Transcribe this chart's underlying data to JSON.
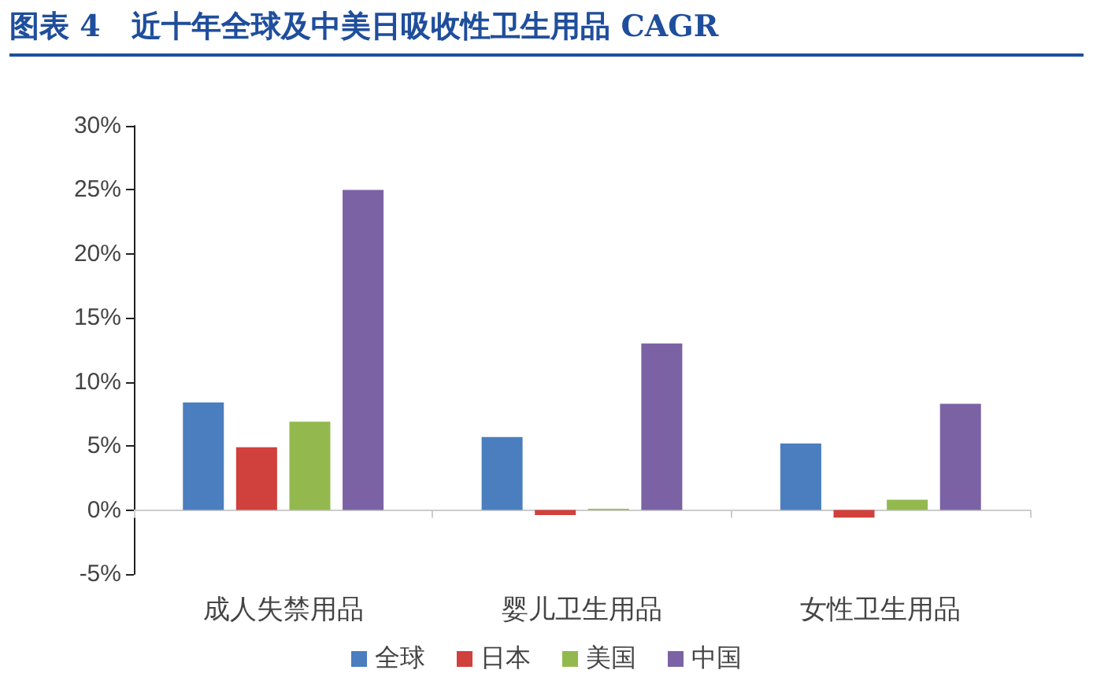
{
  "chart_data": {
    "type": "bar",
    "title": "图表 4   近十年全球及中美日吸收性卫生用品 CAGR",
    "categories": [
      "成人失禁用品",
      "婴儿卫生用品",
      "女性卫生用品"
    ],
    "series": [
      {
        "name": "全球",
        "color": "#4a7ebf",
        "values": [
          8.4,
          5.7,
          5.2
        ]
      },
      {
        "name": "日本",
        "color": "#d0403d",
        "values": [
          4.9,
          -0.4,
          -0.6
        ]
      },
      {
        "name": "美国",
        "color": "#93b94e",
        "values": [
          6.9,
          0.1,
          0.8
        ]
      },
      {
        "name": "中国",
        "color": "#7b62a4",
        "values": [
          25,
          13,
          8.3
        ]
      }
    ],
    "ylim": [
      -5,
      30
    ],
    "yticks": [
      {
        "value": -5,
        "label": "-5%"
      },
      {
        "value": 0,
        "label": "0%"
      },
      {
        "value": 5,
        "label": "5%"
      },
      {
        "value": 10,
        "label": "10%"
      },
      {
        "value": 15,
        "label": "15%"
      },
      {
        "value": 20,
        "label": "20%"
      },
      {
        "value": 25,
        "label": "25%"
      },
      {
        "value": 30,
        "label": "30%"
      }
    ],
    "legend": "bottom"
  }
}
